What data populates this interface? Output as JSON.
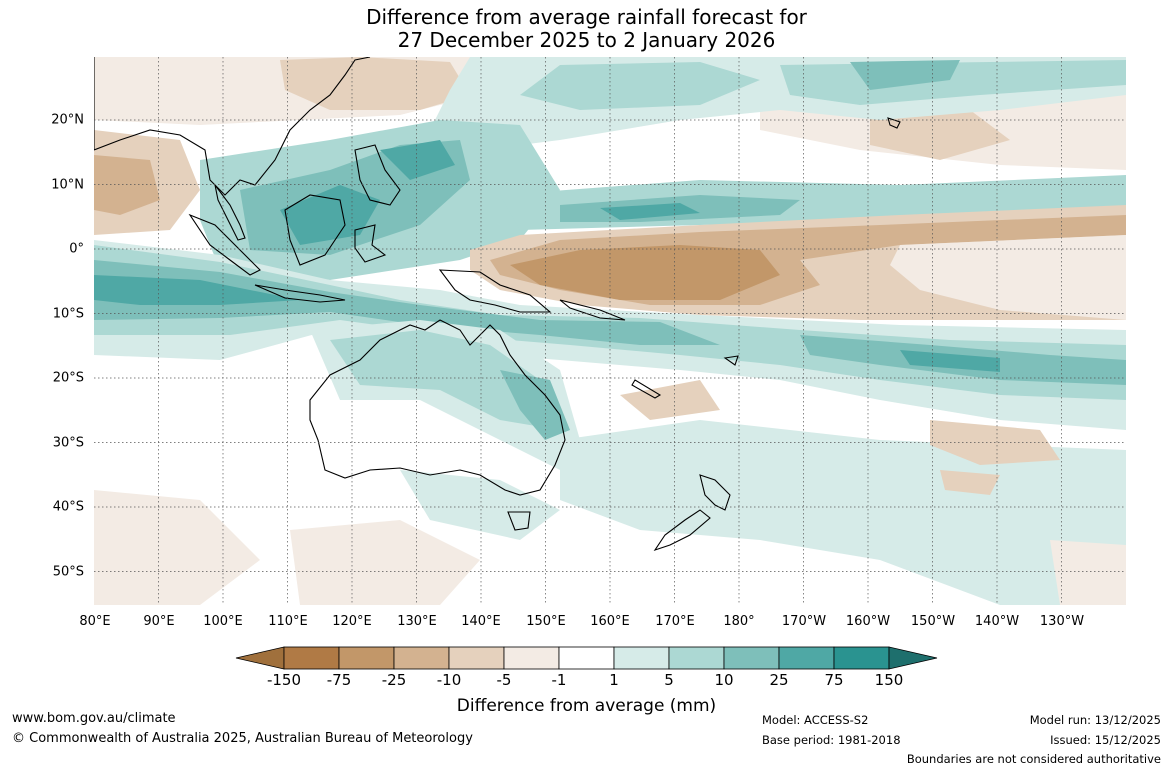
{
  "title": {
    "line1": "Difference from average rainfall forecast for",
    "line2": "27 December 2025 to 2 January 2026"
  },
  "map": {
    "longitude_labels": [
      "80°E",
      "90°E",
      "100°E",
      "110°E",
      "120°E",
      "130°E",
      "140°E",
      "150°E",
      "160°E",
      "170°E",
      "180°",
      "170°W",
      "160°W",
      "150°W",
      "140°W",
      "130°W"
    ],
    "latitude_labels": [
      "20°N",
      "10°N",
      "0°",
      "10°S",
      "20°S",
      "30°S",
      "40°S",
      "50°S"
    ]
  },
  "colorbar": {
    "ticks": [
      "-150",
      "-75",
      "-25",
      "-10",
      "-5",
      "-1",
      "1",
      "5",
      "10",
      "25",
      "75",
      "150"
    ],
    "colors": [
      "#a0703c",
      "#b07a45",
      "#c29769",
      "#d3b290",
      "#e5d1bd",
      "#f3ebe4",
      "#ffffff",
      "#d6ebe8",
      "#acd8d3",
      "#7ebfba",
      "#4fa8a5",
      "#2a9390",
      "#1e6f6d"
    ],
    "label": "Difference from average (mm)"
  },
  "footer": {
    "website": "www.bom.gov.au/climate",
    "copyright": "© Commonwealth of Australia 2025, Australian Bureau of Meteorology",
    "model": "Model: ACCESS-S2",
    "base_period": "Base period: 1981-2018",
    "model_run": "Model run: 13/12/2025",
    "issued": "Issued: 15/12/2025",
    "disclaimer": "Boundaries are not considered authoritative"
  }
}
